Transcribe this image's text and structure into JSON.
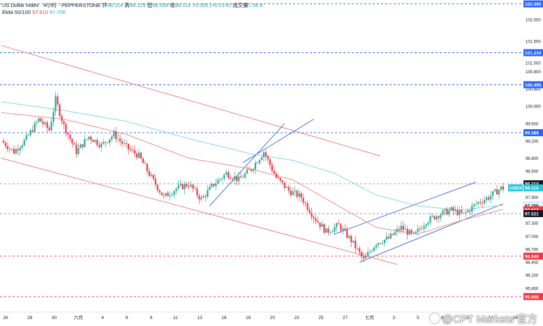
{
  "header": {
    "symbol_line": "US Dollar Index · 4小时 · PEPPERSTONE",
    "open_label": "开",
    "open": "98.114",
    "high_label": "高",
    "high": "98.129",
    "low_label": "低",
    "low": "98.059",
    "close_label": "收",
    "close": "98.114",
    "change": "+0.005 (+0.01%)",
    "volume_label": "成交量",
    "volume": "1.56 K",
    "ema_label": "EMA 50/100",
    "ema50": "97.610",
    "ema100": "97.706"
  },
  "watermark": "@CPT Markets 官方",
  "colors": {
    "up": "#22ab94",
    "down": "#f23645",
    "ema50": "#f28b82",
    "ema100": "#7fd8e8",
    "channel_red": "#f08080",
    "channel_blue": "#4a6cf0",
    "level_blue": "#2962ff",
    "level_red": "#f23645"
  },
  "chart_data": {
    "type": "candlestick",
    "symbol": "USDX",
    "timeframe": "4小时",
    "ylim": [
      95.25,
      102.45
    ],
    "y_ticks": [
      "95.800",
      "96.100",
      "96.400",
      "96.700",
      "97.000",
      "97.300",
      "97.600",
      "97.900",
      "98.200",
      "98.500",
      "98.800",
      "99.200",
      "99.600",
      "100.000",
      "100.400",
      "100.800",
      "101.000",
      "101.500",
      "102.000"
    ],
    "y_tick_values": [
      95.8,
      96.1,
      96.4,
      96.7,
      97.0,
      97.3,
      97.6,
      97.9,
      98.2,
      98.5,
      98.8,
      99.2,
      99.6,
      100.0,
      100.4,
      100.8,
      101.0,
      101.5,
      102.0
    ],
    "x_ticks": [
      "26",
      "28",
      "30",
      "六月",
      "4",
      "6",
      "9",
      "11",
      "13",
      "16",
      "18",
      "20",
      "23",
      "25",
      "27",
      "七月",
      "3",
      "5",
      "9",
      "11",
      "14",
      "16"
    ],
    "price_tags": [
      {
        "label": "",
        "value": "102.360",
        "kind": "level"
      },
      {
        "label": "",
        "value": "101.234",
        "kind": "level"
      },
      {
        "label": "",
        "value": "100.495",
        "kind": "level"
      },
      {
        "label": "",
        "value": "99.388",
        "kind": "level"
      },
      {
        "label": "",
        "value": "98.210",
        "kind": "level"
      },
      {
        "label": "USDX",
        "value": "98.114",
        "kind": "last"
      },
      {
        "label": "",
        "value": "97.706",
        "kind": "ema100"
      },
      {
        "label": "",
        "value": "97.610",
        "kind": "ema50"
      },
      {
        "label": "",
        "value": "97.521",
        "kind": "level"
      },
      {
        "label": "",
        "value": "96.540",
        "kind": "level_red"
      },
      {
        "label": "",
        "value": "95.608",
        "kind": "level_red"
      }
    ],
    "levels": [
      {
        "value": 102.36,
        "color": "blue"
      },
      {
        "value": 101.234,
        "color": "blue"
      },
      {
        "value": 100.495,
        "color": "blue"
      },
      {
        "value": 99.388,
        "color": "blue"
      },
      {
        "value": 98.21,
        "color": "grey"
      },
      {
        "value": 97.521,
        "color": "grey"
      },
      {
        "value": 96.54,
        "color": "red"
      },
      {
        "value": 95.608,
        "color": "red"
      }
    ],
    "close_path": [
      {
        "i": 0,
        "v": 99.2
      },
      {
        "i": 6,
        "v": 98.95
      },
      {
        "i": 12,
        "v": 99.25
      },
      {
        "i": 18,
        "v": 99.7
      },
      {
        "i": 23,
        "v": 99.45
      },
      {
        "i": 26,
        "v": 100.15
      },
      {
        "i": 30,
        "v": 99.55
      },
      {
        "i": 36,
        "v": 98.95
      },
      {
        "i": 42,
        "v": 99.3
      },
      {
        "i": 48,
        "v": 99.1
      },
      {
        "i": 54,
        "v": 99.35
      },
      {
        "i": 60,
        "v": 99.05
      },
      {
        "i": 66,
        "v": 98.85
      },
      {
        "i": 72,
        "v": 98.35
      },
      {
        "i": 78,
        "v": 97.9
      },
      {
        "i": 84,
        "v": 98.1
      },
      {
        "i": 90,
        "v": 98.2
      },
      {
        "i": 96,
        "v": 97.85
      },
      {
        "i": 102,
        "v": 98.2
      },
      {
        "i": 108,
        "v": 98.45
      },
      {
        "i": 114,
        "v": 98.3
      },
      {
        "i": 120,
        "v": 98.55
      },
      {
        "i": 126,
        "v": 98.95
      },
      {
        "i": 132,
        "v": 98.35
      },
      {
        "i": 138,
        "v": 98.05
      },
      {
        "i": 144,
        "v": 97.9
      },
      {
        "i": 150,
        "v": 97.45
      },
      {
        "i": 156,
        "v": 97.1
      },
      {
        "i": 162,
        "v": 97.25
      },
      {
        "i": 168,
        "v": 96.9
      },
      {
        "i": 174,
        "v": 96.45
      },
      {
        "i": 180,
        "v": 96.85
      },
      {
        "i": 186,
        "v": 96.95
      },
      {
        "i": 192,
        "v": 97.2
      },
      {
        "i": 198,
        "v": 97.0
      },
      {
        "i": 204,
        "v": 97.35
      },
      {
        "i": 210,
        "v": 97.5
      },
      {
        "i": 216,
        "v": 97.6
      },
      {
        "i": 222,
        "v": 97.5
      },
      {
        "i": 228,
        "v": 97.75
      },
      {
        "i": 234,
        "v": 97.9
      },
      {
        "i": 240,
        "v": 98.11
      }
    ],
    "ema50_path": [
      {
        "i": 0,
        "v": 99.85
      },
      {
        "i": 30,
        "v": 99.7
      },
      {
        "i": 60,
        "v": 99.35
      },
      {
        "i": 90,
        "v": 98.8
      },
      {
        "i": 120,
        "v": 98.55
      },
      {
        "i": 140,
        "v": 98.3
      },
      {
        "i": 160,
        "v": 97.75
      },
      {
        "i": 180,
        "v": 97.2
      },
      {
        "i": 200,
        "v": 97.05
      },
      {
        "i": 220,
        "v": 97.35
      },
      {
        "i": 240,
        "v": 97.61
      }
    ],
    "ema100_path": [
      {
        "i": 0,
        "v": 100.1
      },
      {
        "i": 30,
        "v": 99.9
      },
      {
        "i": 60,
        "v": 99.65
      },
      {
        "i": 90,
        "v": 99.25
      },
      {
        "i": 120,
        "v": 98.9
      },
      {
        "i": 140,
        "v": 98.75
      },
      {
        "i": 160,
        "v": 98.45
      },
      {
        "i": 180,
        "v": 97.95
      },
      {
        "i": 200,
        "v": 97.7
      },
      {
        "i": 220,
        "v": 97.6
      },
      {
        "i": 240,
        "v": 97.71
      }
    ],
    "channels": [
      {
        "color": "red",
        "from": {
          "i": 0,
          "v": 101.4
        },
        "to": {
          "i": 182,
          "v": 98.85
        }
      },
      {
        "color": "red",
        "from": {
          "i": 0,
          "v": 98.8
        },
        "to": {
          "i": 190,
          "v": 96.35
        }
      },
      {
        "color": "blue",
        "from": {
          "i": 100,
          "v": 97.7
        },
        "to": {
          "i": 136,
          "v": 99.6
        }
      },
      {
        "color": "blue",
        "from": {
          "i": 116,
          "v": 98.7
        },
        "to": {
          "i": 150,
          "v": 99.7
        }
      },
      {
        "color": "blue",
        "from": {
          "i": 160,
          "v": 97.05
        },
        "to": {
          "i": 228,
          "v": 98.25
        }
      },
      {
        "color": "blue",
        "from": {
          "i": 172,
          "v": 96.4
        },
        "to": {
          "i": 241,
          "v": 97.75
        }
      }
    ]
  }
}
